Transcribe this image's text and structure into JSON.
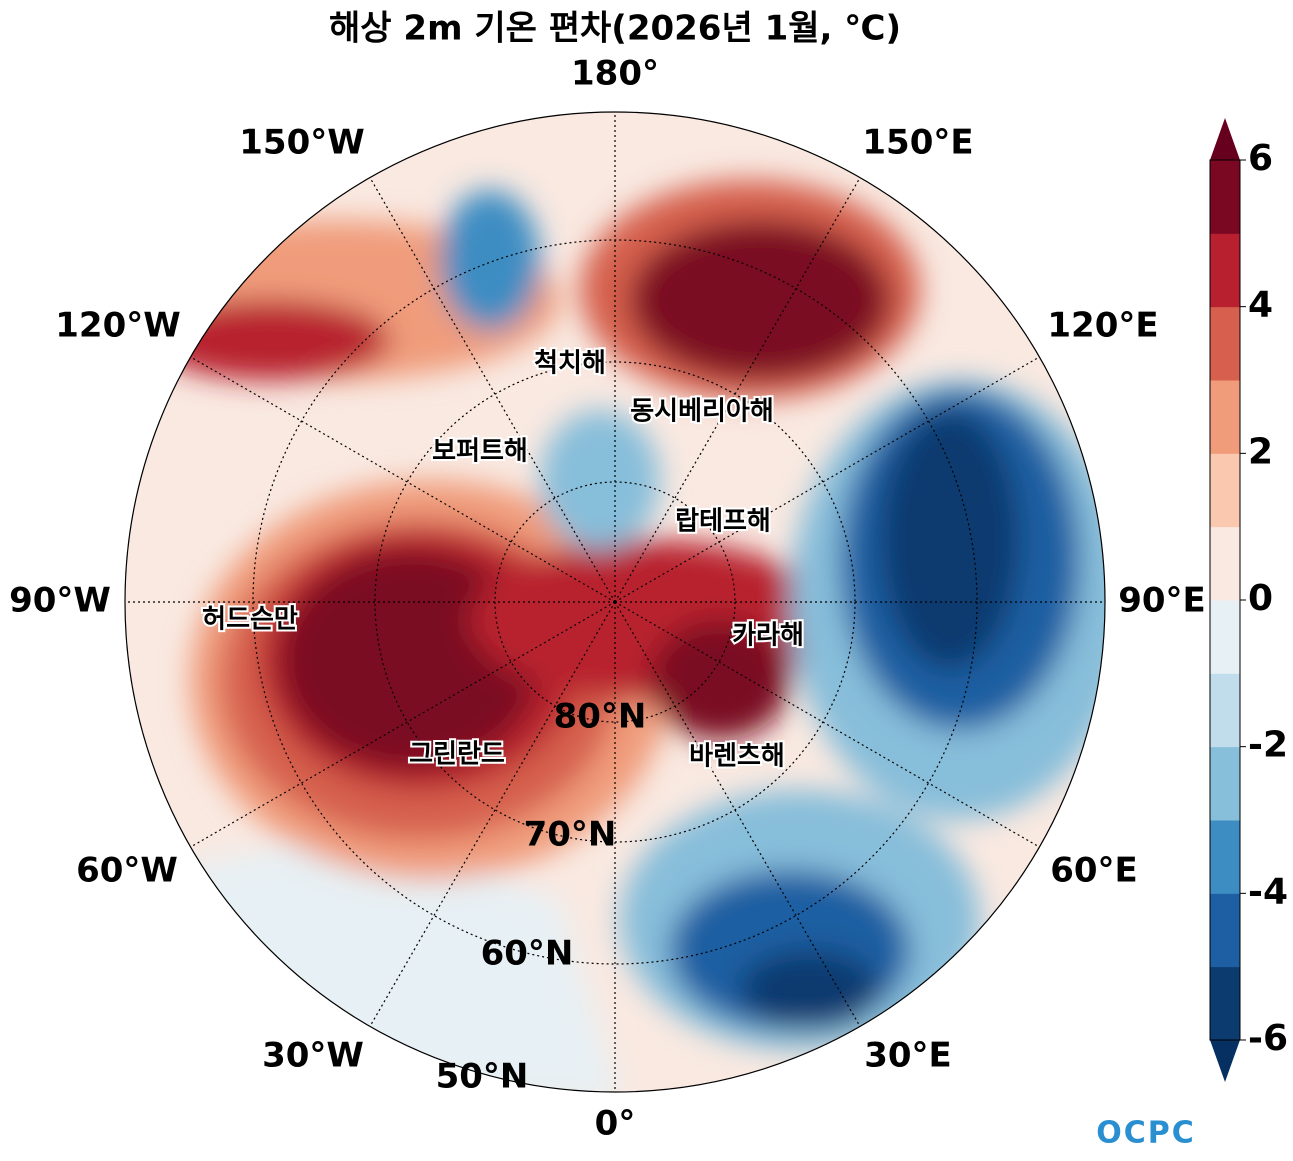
{
  "title": "해상 2m 기온 편차(2026년 1월, ℃)",
  "lon_labels": [
    "180°",
    "150°E",
    "120°E",
    "90°E",
    "60°E",
    "30°E",
    "0°",
    "30°W",
    "60°W",
    "90°W",
    "120°W",
    "150°W"
  ],
  "lat_labels": [
    "80°N",
    "70°N",
    "60°N",
    "50°N"
  ],
  "regions": [
    "척치해",
    "동시베리아해",
    "보퍼트해",
    "랍테프해",
    "허드슨만",
    "카라해",
    "그린란드",
    "바렌츠해"
  ],
  "colorbar": {
    "lim": [
      -6,
      6
    ],
    "ticks": [
      -6,
      -4,
      -2,
      0,
      2,
      4,
      6
    ],
    "colors": [
      "#0c3b70",
      "#1d5fa2",
      "#3d8dc3",
      "#87beda",
      "#c1ddec",
      "#e7f0f4",
      "#f9e9e1",
      "#fac8af",
      "#f09c7b",
      "#d6604d",
      "#b8202f",
      "#7a0822"
    ],
    "under_color": "#053061",
    "over_color": "#67001f"
  },
  "logo": "OCPC"
}
